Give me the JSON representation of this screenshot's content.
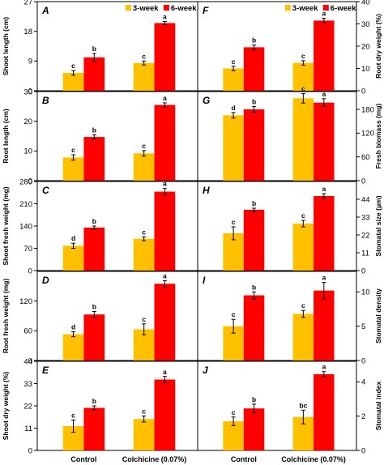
{
  "legend": [
    {
      "name": "3-week",
      "color": "#FFC000"
    },
    {
      "name": "6-week",
      "color": "#FF0000"
    }
  ],
  "categories": [
    "Control",
    "Colchicine (0.07%)"
  ],
  "chart_data": [
    {
      "type": "bar",
      "label": "A",
      "ylabel": "Shoot length (cm)",
      "axis_side": "left",
      "ylim": [
        0,
        27
      ],
      "yticks": [
        0,
        9,
        18,
        27
      ],
      "series": [
        {
          "name": "3-week",
          "values": [
            5.4,
            8.4
          ],
          "errors": [
            0.7,
            0.6
          ],
          "letters": [
            "c",
            "c"
          ]
        },
        {
          "name": "6-week",
          "values": [
            10.1,
            20.5
          ],
          "errors": [
            1.2,
            0.5
          ],
          "letters": [
            "b",
            "a"
          ]
        }
      ]
    },
    {
      "type": "bar",
      "label": "B",
      "ylabel": "Root length (cm)",
      "axis_side": "left",
      "ylim": [
        0,
        30
      ],
      "yticks": [
        0,
        10,
        20,
        30
      ],
      "series": [
        {
          "name": "3-week",
          "values": [
            7.8,
            9.2
          ],
          "errors": [
            0.9,
            0.9
          ],
          "letters": [
            "c",
            "c"
          ]
        },
        {
          "name": "6-week",
          "values": [
            14.7,
            25.5
          ],
          "errors": [
            0.7,
            0.7
          ],
          "letters": [
            "b",
            "a"
          ]
        }
      ]
    },
    {
      "type": "bar",
      "label": "C",
      "ylabel": "Shoot fresh weight (mg)",
      "axis_side": "left",
      "ylim": [
        0,
        280
      ],
      "yticks": [
        0,
        70,
        140,
        210,
        280
      ],
      "series": [
        {
          "name": "3-week",
          "values": [
            78,
            100
          ],
          "errors": [
            8,
            6
          ],
          "letters": [
            "d",
            "c"
          ]
        },
        {
          "name": "6-week",
          "values": [
            135,
            248
          ],
          "errors": [
            5,
            10
          ],
          "letters": [
            "b",
            "a"
          ]
        }
      ]
    },
    {
      "type": "bar",
      "label": "D",
      "ylabel": "Root fresh weight (mg)",
      "axis_side": "left",
      "ylim": [
        0,
        180
      ],
      "yticks": [
        0,
        60,
        120
      ],
      "series": [
        {
          "name": "3-week",
          "values": [
            53,
            63
          ],
          "errors": [
            5,
            11
          ],
          "letters": [
            "d",
            "c"
          ]
        },
        {
          "name": "6-week",
          "values": [
            93,
            155
          ],
          "errors": [
            6,
            6
          ],
          "letters": [
            "b",
            "a"
          ]
        }
      ]
    },
    {
      "type": "bar",
      "label": "E",
      "ylabel": "Shoot dry weight (%)",
      "axis_side": "left",
      "ylim": [
        0,
        44
      ],
      "yticks": [
        0,
        11,
        22,
        33,
        44
      ],
      "series": [
        {
          "name": "3-week",
          "values": [
            12,
            15.5
          ],
          "errors": [
            3,
            1.5
          ],
          "letters": [
            "c",
            "c"
          ]
        },
        {
          "name": "6-week",
          "values": [
            21,
            35
          ],
          "errors": [
            1,
            1.5
          ],
          "letters": [
            "b",
            "a"
          ]
        }
      ]
    },
    {
      "type": "bar",
      "label": "F",
      "ylabel": "Root dry weight (%)",
      "axis_side": "right",
      "ylim": [
        0,
        40
      ],
      "yticks": [
        0,
        10,
        20,
        30,
        40
      ],
      "series": [
        {
          "name": "3-week",
          "values": [
            10,
            12.5
          ],
          "errors": [
            1,
            1
          ],
          "letters": [
            "c",
            "c"
          ]
        },
        {
          "name": "6-week",
          "values": [
            19.5,
            31.5
          ],
          "errors": [
            1,
            1
          ],
          "letters": [
            "b",
            "a"
          ]
        }
      ]
    },
    {
      "type": "bar",
      "label": "G",
      "ylabel": "Fresh biomass (mg)",
      "axis_side": "right",
      "ylim": [
        0,
        225
      ],
      "yticks": [
        0,
        60,
        120,
        180
      ],
      "series": [
        {
          "name": "3-week",
          "values": [
            165,
            208
          ],
          "errors": [
            7,
            12
          ],
          "letters": [
            "d",
            "c"
          ]
        },
        {
          "name": "6-week",
          "values": [
            180,
            197
          ],
          "errors": [
            7,
            10
          ],
          "letters": [
            "b",
            "a"
          ]
        }
      ]
    },
    {
      "type": "bar",
      "label": "H",
      "ylabel": "Stomatal size (μm)",
      "axis_side": "right",
      "ylim": [
        0,
        55
      ],
      "yticks": [
        0,
        11,
        22,
        33,
        44
      ],
      "series": [
        {
          "name": "3-week",
          "values": [
            23,
            29
          ],
          "errors": [
            4,
            2
          ],
          "letters": [
            "c",
            "c"
          ]
        },
        {
          "name": "6-week",
          "values": [
            37.5,
            46
          ],
          "errors": [
            1,
            1.5
          ],
          "letters": [
            "b",
            "a"
          ]
        }
      ]
    },
    {
      "type": "bar",
      "label": "I",
      "ylabel": "Stomatal density",
      "axis_side": "right",
      "ylim": [
        0,
        13
      ],
      "yticks": [
        0,
        5,
        10
      ],
      "series": [
        {
          "name": "3-week",
          "values": [
            5,
            6.8
          ],
          "errors": [
            1,
            0.5
          ],
          "letters": [
            "c",
            "c"
          ]
        },
        {
          "name": "6-week",
          "values": [
            9.5,
            10.2
          ],
          "errors": [
            0.5,
            1.2
          ],
          "letters": [
            "b",
            "a"
          ]
        }
      ]
    },
    {
      "type": "bar",
      "label": "J",
      "ylabel": "Stomatal index",
      "axis_side": "right",
      "ylim": [
        0,
        5.2
      ],
      "yticks": [
        0,
        2,
        4
      ],
      "series": [
        {
          "name": "3-week",
          "values": [
            1.7,
            1.95
          ],
          "errors": [
            0.25,
            0.4
          ],
          "letters": [
            "c",
            "bc"
          ]
        },
        {
          "name": "6-week",
          "values": [
            2.45,
            4.45
          ],
          "errors": [
            0.25,
            0.15
          ],
          "letters": [
            "b",
            "a"
          ]
        }
      ]
    }
  ]
}
